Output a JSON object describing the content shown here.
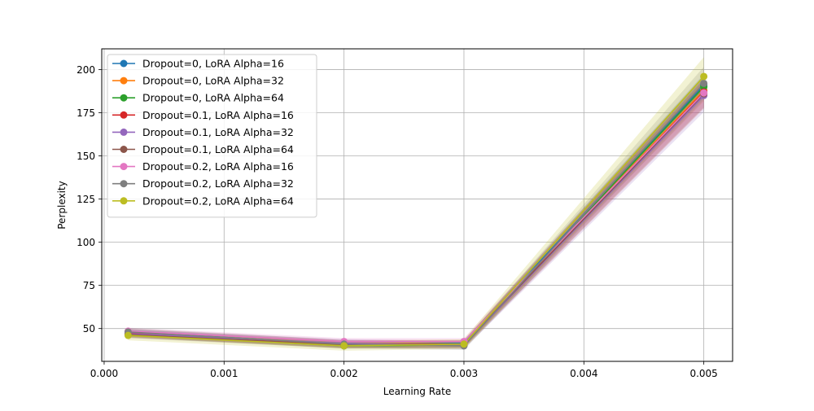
{
  "chart_data": {
    "type": "line",
    "title": "",
    "xlabel": "Learning Rate",
    "ylabel": "Perplexity",
    "xlim": [
      -2e-05,
      0.00524
    ],
    "ylim": [
      31.0,
      212.0
    ],
    "grid": true,
    "legend_position": "upper-left",
    "x": [
      0.0002,
      0.002,
      0.003,
      0.005
    ],
    "x_ticks": [
      0.0,
      0.001,
      0.002,
      0.003,
      0.004,
      0.005
    ],
    "x_tick_labels": [
      "0.000",
      "0.001",
      "0.002",
      "0.003",
      "0.004",
      "0.005"
    ],
    "y_ticks": [
      50,
      75,
      100,
      125,
      150,
      175,
      200
    ],
    "y_tick_labels": [
      "50",
      "75",
      "100",
      "125",
      "150",
      "175",
      "200"
    ],
    "series": [
      {
        "name": "Dropout=0, LoRA Alpha=16",
        "color": "#1f77b4",
        "values": [
          48.0,
          41.0,
          41.5,
          191.0
        ],
        "band": 4.0
      },
      {
        "name": "Dropout=0, LoRA Alpha=32",
        "color": "#ff7f0e",
        "values": [
          47.0,
          41.5,
          41.0,
          188.0
        ],
        "band": 4.0
      },
      {
        "name": "Dropout=0, LoRA Alpha=64",
        "color": "#2ca02c",
        "values": [
          46.5,
          40.0,
          40.5,
          190.0
        ],
        "band": 4.0
      },
      {
        "name": "Dropout=0.1, LoRA Alpha=16",
        "color": "#d62728",
        "values": [
          47.5,
          41.0,
          41.0,
          187.0
        ],
        "band": 6.0
      },
      {
        "name": "Dropout=0.1, LoRA Alpha=32",
        "color": "#9467bd",
        "values": [
          47.0,
          41.5,
          40.5,
          185.0
        ],
        "band": 6.0
      },
      {
        "name": "Dropout=0.1, LoRA Alpha=64",
        "color": "#8c564b",
        "values": [
          46.5,
          40.5,
          41.0,
          186.0
        ],
        "band": 5.0
      },
      {
        "name": "Dropout=0.2, LoRA Alpha=16",
        "color": "#e377c2",
        "values": [
          48.5,
          42.5,
          42.5,
          186.5
        ],
        "band": 5.0
      },
      {
        "name": "Dropout=0.2, LoRA Alpha=32",
        "color": "#7f7f7f",
        "values": [
          48.0,
          41.0,
          40.0,
          192.0
        ],
        "band": 6.0
      },
      {
        "name": "Dropout=0.2, LoRA Alpha=64",
        "color": "#bcbd22",
        "values": [
          46.0,
          40.0,
          41.0,
          196.0
        ],
        "band": 7.0
      }
    ]
  }
}
